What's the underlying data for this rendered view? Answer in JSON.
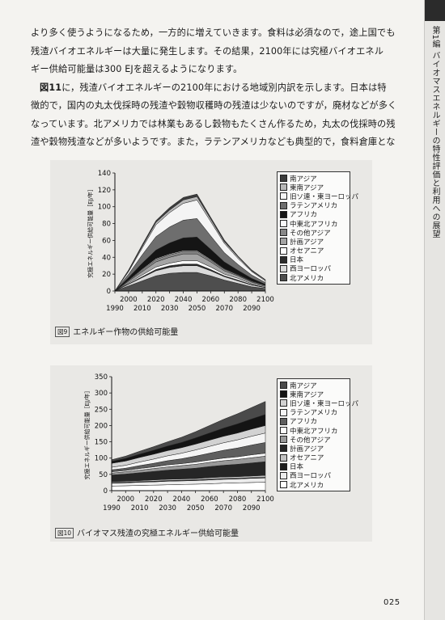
{
  "side_tab": {
    "text": "第1編 バイオマスエネルギーの特性評価と利用への展望"
  },
  "paragraphs": [
    {
      "lines": [
        "より多く使うようになるため，一方的に増えていきます。食料は必須なので，途上国でも",
        "残渣バイオエネルギーは大量に発生します。その結果，2100年には究極バイオエネル",
        "ギー供給可能量は300 EJを超えるようになります。"
      ]
    },
    {
      "lead": "図11",
      "lines": [
        "に，残渣バイオエネルギーの2100年における地域別内訳を示します。日本は特",
        "徴的で，国内の丸太伐採時の残渣や穀物収穫時の残渣は少ないのですが，廃材などが多く",
        "なっています。北アメリカでは林業もあるし穀物もたくさん作るため，丸太の伐採時の残",
        "渣や穀物残渣などが多いようです。また，ラテンアメリカなども典型的で，食料倉庫とな"
      ]
    }
  ],
  "page_number": "025",
  "legend_names": [
    "南アジア",
    "東南アジア",
    "旧ソ連・東ヨーロッパ",
    "ラテンアメリカ",
    "アフリカ",
    "中東北アフリカ",
    "その他アジア",
    "計画アジア",
    "オセアニア",
    "日本",
    "西ヨーロッパ",
    "北アメリカ"
  ],
  "legend_colors_1": [
    "#3c3c3c",
    "#b8b8b8",
    "#f4f4f4",
    "#6e6e6e",
    "#151515",
    "#fafafa",
    "#888888",
    "#a4a4a4",
    "#fdfdfd",
    "#2c2c2c",
    "#dadada",
    "#4e4e4e"
  ],
  "legend_colors_2": [
    "#4a4a4a",
    "#141414",
    "#d2d2d2",
    "#f5f5f5",
    "#5e5e5e",
    "#fbfbfb",
    "#999999",
    "#262626",
    "#c2c2c2",
    "#1e1e1e",
    "#ececec",
    "#ffffff"
  ],
  "chart_data": [
    {
      "type": "area",
      "title": "エネルギー作物の供給可能量",
      "caption_tag": "図9",
      "ylabel": "究極エネルギー供給可能量［EJ/年］",
      "ylim": [
        0,
        140
      ],
      "yticks": [
        0,
        20,
        40,
        60,
        80,
        100,
        120,
        140
      ],
      "x": [
        1990,
        2000,
        2010,
        2020,
        2030,
        2040,
        2050,
        2060,
        2070,
        2080,
        2090,
        2100
      ],
      "xticks_top": [
        "2000",
        "2020",
        "2040",
        "2060",
        "2080",
        "2100"
      ],
      "xticks_bottom": [
        "1990",
        "2010",
        "2030",
        "2050",
        "2070",
        "2090"
      ],
      "series": [
        {
          "name": "北アメリカ",
          "values": [
            0,
            6,
            12,
            18,
            21,
            22,
            22,
            18,
            13,
            9,
            5,
            3
          ]
        },
        {
          "name": "西ヨーロッパ",
          "values": [
            0,
            2,
            4,
            6,
            7,
            8,
            8,
            6,
            4,
            3,
            2,
            1
          ]
        },
        {
          "name": "日本",
          "values": [
            0,
            0.5,
            1,
            1.5,
            2,
            2,
            2,
            1.5,
            1,
            1,
            0.5,
            0.5
          ]
        },
        {
          "name": "オセアニア",
          "values": [
            0,
            1,
            2,
            3,
            3,
            4,
            4,
            3,
            2,
            2,
            1,
            1
          ]
        },
        {
          "name": "計画アジア",
          "values": [
            0,
            2,
            4,
            6,
            7,
            8,
            8,
            6,
            4,
            3,
            2,
            1
          ]
        },
        {
          "name": "その他アジア",
          "values": [
            0,
            1,
            2,
            3,
            3,
            3,
            3,
            2,
            2,
            1,
            1,
            0.5
          ]
        },
        {
          "name": "中東北アフリカ",
          "values": [
            0,
            0.5,
            1,
            1,
            1,
            1,
            1,
            1,
            0.5,
            0.5,
            0.5,
            0
          ]
        },
        {
          "name": "アフリカ",
          "values": [
            0,
            3,
            7,
            10,
            13,
            15,
            16,
            12,
            8,
            5,
            3,
            1
          ]
        },
        {
          "name": "ラテンアメリカ",
          "values": [
            0,
            4,
            10,
            16,
            19,
            21,
            22,
            16,
            11,
            7,
            4,
            2
          ]
        },
        {
          "name": "旧ソ連・東ヨーロッパ",
          "values": [
            0,
            3,
            8,
            14,
            17,
            20,
            22,
            17,
            11,
            7,
            4,
            2
          ]
        },
        {
          "name": "東南アジア",
          "values": [
            0,
            1,
            2,
            3,
            3,
            4,
            4,
            3,
            2,
            2,
            1,
            1
          ]
        },
        {
          "name": "南アジア",
          "values": [
            0,
            1,
            2,
            2,
            3,
            3,
            3,
            2,
            2,
            1,
            1,
            0.5
          ]
        }
      ]
    },
    {
      "type": "area",
      "title": "バイオマス残渣の究極エネルギー供給可能量",
      "caption_tag": "図10",
      "ylabel": "究極エネルギー供給可能量［EJ/年］",
      "ylim": [
        0,
        350
      ],
      "yticks": [
        0,
        50,
        100,
        150,
        200,
        250,
        300,
        350
      ],
      "x": [
        1990,
        2000,
        2010,
        2020,
        2030,
        2040,
        2050,
        2060,
        2070,
        2080,
        2090,
        2100
      ],
      "xticks_top": [
        "2000",
        "2020",
        "2040",
        "2060",
        "2080",
        "2100"
      ],
      "xticks_bottom": [
        "1990",
        "2010",
        "2030",
        "2050",
        "2070",
        "2090"
      ],
      "series": [
        {
          "name": "北アメリカ",
          "values": [
            14,
            15,
            16,
            17,
            18,
            19,
            20,
            21,
            23,
            24,
            25,
            26
          ]
        },
        {
          "name": "西ヨーロッパ",
          "values": [
            9,
            9,
            10,
            10,
            11,
            11,
            11,
            12,
            12,
            12,
            13,
            13
          ]
        },
        {
          "name": "日本",
          "values": [
            2,
            2,
            2,
            2,
            2,
            2,
            2,
            2,
            2,
            2,
            2,
            2
          ]
        },
        {
          "name": "オセアニア",
          "values": [
            3,
            3,
            3,
            4,
            4,
            4,
            4,
            5,
            5,
            5,
            5,
            6
          ]
        },
        {
          "name": "計画アジア",
          "values": [
            20,
            22,
            24,
            26,
            28,
            30,
            32,
            34,
            36,
            38,
            40,
            42
          ]
        },
        {
          "name": "その他アジア",
          "values": [
            6,
            7,
            8,
            9,
            10,
            11,
            12,
            13,
            14,
            15,
            16,
            17
          ]
        },
        {
          "name": "中東北アフリカ",
          "values": [
            4,
            4,
            5,
            5,
            6,
            6,
            7,
            7,
            8,
            8,
            9,
            9
          ]
        },
        {
          "name": "アフリカ",
          "values": [
            6,
            7,
            9,
            11,
            13,
            15,
            18,
            21,
            24,
            27,
            30,
            33
          ]
        },
        {
          "name": "ラテンアメリカ",
          "values": [
            8,
            9,
            11,
            13,
            15,
            17,
            19,
            21,
            23,
            25,
            27,
            29
          ]
        },
        {
          "name": "旧ソ連・東ヨーロッパ",
          "values": [
            12,
            13,
            14,
            15,
            16,
            17,
            18,
            19,
            20,
            21,
            22,
            23
          ]
        },
        {
          "name": "東南アジア",
          "values": [
            6,
            8,
            10,
            12,
            14,
            16,
            19,
            22,
            25,
            28,
            31,
            34
          ]
        },
        {
          "name": "南アジア",
          "values": [
            5,
            7,
            9,
            11,
            13,
            16,
            19,
            23,
            27,
            31,
            35,
            40
          ]
        }
      ]
    }
  ]
}
